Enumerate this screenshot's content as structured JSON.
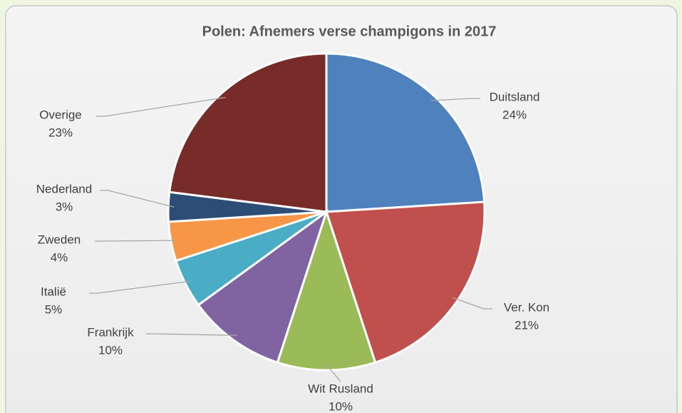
{
  "chart_data": {
    "type": "pie",
    "title": "Polen: Afnemers verse champigons in 2017",
    "categories": [
      "Duitsland",
      "Ver. Kon",
      "Wit Rusland",
      "Frankrijk",
      "Italië",
      "Zweden",
      "Nederland",
      "Overige"
    ],
    "values": [
      24,
      21,
      10,
      10,
      5,
      4,
      3,
      23
    ],
    "value_labels": [
      "24%",
      "21%",
      "10%",
      "10%",
      "5%",
      "4%",
      "3%",
      "23%"
    ],
    "colors": [
      "#4f81bd",
      "#c0504d",
      "#9bbb59",
      "#8064a2",
      "#4bacc6",
      "#f79646",
      "#2c4d75",
      "#772c2a"
    ]
  }
}
